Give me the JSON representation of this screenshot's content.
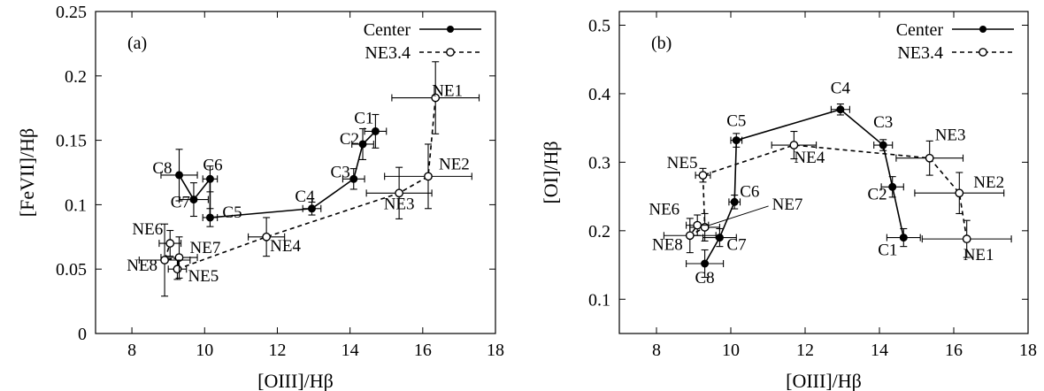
{
  "chart_data": [
    {
      "type": "scatter",
      "panel_label": "(a)",
      "xlabel": "[OIII]/Hβ",
      "ylabel": "[FeVII]/Hβ",
      "xlim": [
        7,
        18
      ],
      "ylim": [
        0,
        0.25
      ],
      "xticks": [
        8,
        10,
        12,
        14,
        16,
        18
      ],
      "yticks": [
        0,
        0.05,
        0.1,
        0.15,
        0.2,
        0.25
      ],
      "ytick_labels": [
        "0",
        "0.05",
        "0.1",
        "0.15",
        "0.2",
        "0.25"
      ],
      "legend": {
        "position": "top-right",
        "entries": [
          "Center",
          "NE3.4"
        ]
      },
      "series": [
        {
          "name": "Center",
          "line": "solid",
          "marker": "filled-circle",
          "points": [
            {
              "label": "C1",
              "x": 14.7,
              "y": 0.157,
              "xerr": 0.3,
              "yerr": 0.013
            },
            {
              "label": "C2",
              "x": 14.35,
              "y": 0.147,
              "xerr": 0.3,
              "yerr": 0.012
            },
            {
              "label": "C3",
              "x": 14.1,
              "y": 0.12,
              "xerr": 0.3,
              "yerr": 0.008
            },
            {
              "label": "C4",
              "x": 12.95,
              "y": 0.097,
              "xerr": 0.25,
              "yerr": 0.005
            },
            {
              "label": "C5",
              "x": 10.15,
              "y": 0.09,
              "xerr": 0.2,
              "yerr": 0.007
            },
            {
              "label": "C6",
              "x": 10.15,
              "y": 0.12,
              "xerr": 0.2,
              "yerr": 0.01
            },
            {
              "label": "C7",
              "x": 9.7,
              "y": 0.104,
              "xerr": 0.4,
              "yerr": 0.013
            },
            {
              "label": "C8",
              "x": 9.3,
              "y": 0.123,
              "xerr": 0.5,
              "yerr": 0.02
            }
          ]
        },
        {
          "name": "NE3.4",
          "line": "dashed",
          "marker": "open-circle",
          "points": [
            {
              "label": "NE1",
              "x": 16.35,
              "y": 0.183,
              "xerr": 1.2,
              "yerr": 0.028
            },
            {
              "label": "NE2",
              "x": 16.15,
              "y": 0.122,
              "xerr": 1.2,
              "yerr": 0.025
            },
            {
              "label": "NE3",
              "x": 15.35,
              "y": 0.109,
              "xerr": 0.9,
              "yerr": 0.02
            },
            {
              "label": "NE4",
              "x": 11.7,
              "y": 0.075,
              "xerr": 0.5,
              "yerr": 0.015
            },
            {
              "label": "NE5",
              "x": 9.25,
              "y": 0.05,
              "xerr": 0.25,
              "yerr": 0.008
            },
            {
              "label": "NE7",
              "x": 9.3,
              "y": 0.059,
              "xerr": 0.5,
              "yerr": 0.016
            },
            {
              "label": "NE8",
              "x": 8.9,
              "y": 0.057,
              "xerr": 0.7,
              "yerr": 0.028
            },
            {
              "label": "NE6",
              "x": 9.05,
              "y": 0.07,
              "xerr": 0.3,
              "yerr": 0.01
            }
          ]
        }
      ]
    },
    {
      "type": "scatter",
      "panel_label": "(b)",
      "xlabel": "[OIII]/Hβ",
      "ylabel": "[OI]/Hβ",
      "xlim": [
        7,
        18
      ],
      "ylim": [
        0.05,
        0.52
      ],
      "xticks": [
        8,
        10,
        12,
        14,
        16,
        18
      ],
      "yticks": [
        0.1,
        0.2,
        0.3,
        0.4,
        0.5
      ],
      "ytick_labels": [
        "0.1",
        "0.2",
        "0.3",
        "0.4",
        "0.5"
      ],
      "legend": {
        "position": "top-right",
        "entries": [
          "Center",
          "NE3.4"
        ]
      },
      "series": [
        {
          "name": "Center",
          "line": "solid",
          "marker": "filled-circle",
          "points": [
            {
              "label": "C1",
              "x": 14.65,
              "y": 0.19,
              "xerr": 0.45,
              "yerr": 0.013
            },
            {
              "label": "C2",
              "x": 14.35,
              "y": 0.264,
              "xerr": 0.3,
              "yerr": 0.015
            },
            {
              "label": "C3",
              "x": 14.1,
              "y": 0.325,
              "xerr": 0.25,
              "yerr": 0.008
            },
            {
              "label": "C4",
              "x": 12.95,
              "y": 0.377,
              "xerr": 0.25,
              "yerr": 0.008
            },
            {
              "label": "C5",
              "x": 10.15,
              "y": 0.332,
              "xerr": 0.15,
              "yerr": 0.01
            },
            {
              "label": "C6",
              "x": 10.1,
              "y": 0.242,
              "xerr": 0.15,
              "yerr": 0.01
            },
            {
              "label": "C7",
              "x": 9.7,
              "y": 0.19,
              "xerr": 0.45,
              "yerr": 0.013
            },
            {
              "label": "C8",
              "x": 9.3,
              "y": 0.152,
              "xerr": 0.5,
              "yerr": 0.02
            }
          ]
        },
        {
          "name": "NE3.4",
          "line": "dashed",
          "marker": "open-circle",
          "points": [
            {
              "label": "NE1",
              "x": 16.35,
              "y": 0.188,
              "xerr": 1.2,
              "yerr": 0.027
            },
            {
              "label": "NE2",
              "x": 16.15,
              "y": 0.255,
              "xerr": 1.2,
              "yerr": 0.03
            },
            {
              "label": "NE3",
              "x": 15.35,
              "y": 0.306,
              "xerr": 0.9,
              "yerr": 0.025
            },
            {
              "label": "NE4",
              "x": 11.7,
              "y": 0.325,
              "xerr": 0.6,
              "yerr": 0.02
            },
            {
              "label": "NE5",
              "x": 9.25,
              "y": 0.281,
              "xerr": 0.2,
              "yerr": 0.01
            },
            {
              "label": "NE7",
              "x": 9.3,
              "y": 0.205,
              "xerr": 0.4,
              "yerr": 0.02
            },
            {
              "label": "NE8",
              "x": 8.9,
              "y": 0.193,
              "xerr": 0.7,
              "yerr": 0.025
            },
            {
              "label": "NE6",
              "x": 9.1,
              "y": 0.208,
              "xerr": 0.3,
              "yerr": 0.015
            }
          ]
        }
      ]
    }
  ]
}
